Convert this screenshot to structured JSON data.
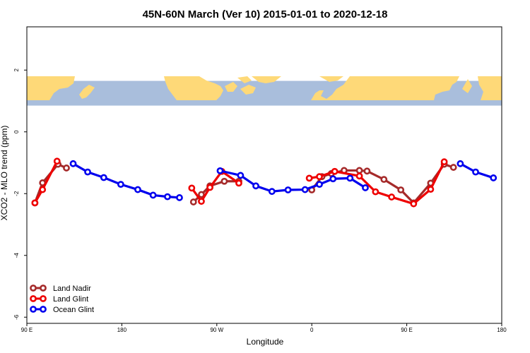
{
  "chart_data": {
    "type": "line",
    "title": "45N-60N March (Ver 10)   2015-01-01 to 2020-12-18",
    "xlabel": "Longitude",
    "ylabel": "XCO2 - MLO trend (ppm)",
    "xlim": [
      -90,
      270
    ],
    "ylim": [
      -6.2,
      3.4
    ],
    "x_ticks": [
      {
        "value": -90,
        "label": "90 E"
      },
      {
        "value": -18,
        "label": "180"
      },
      {
        "value": 54,
        "label": "90 W"
      },
      {
        "value": 126,
        "label": "0"
      },
      {
        "value": 198,
        "label": "90 E"
      },
      {
        "value": 270,
        "label": "180"
      }
    ],
    "y_ticks": [
      {
        "value": 2,
        "label": "2"
      },
      {
        "value": 0,
        "label": "0"
      },
      {
        "value": -2,
        "label": "-2"
      },
      {
        "value": -4,
        "label": "-4"
      },
      {
        "value": -6,
        "label": "-6"
      }
    ],
    "map_band": {
      "y_top": 1.65,
      "y_bottom": 0.85,
      "ocean_color": "#A9BEDC",
      "land_color": "#FED978"
    },
    "legend": {
      "position": "bottom-left"
    },
    "series": [
      {
        "name": "Land Nadir",
        "color": "#A52A2A",
        "segments": [
          {
            "x": [
              -83.9,
              -78.1,
              -66.4,
              -60.0
            ],
            "y": [
              -2.3,
              -1.65,
              -1.05,
              -1.17
            ]
          },
          {
            "x": [
              36.3,
              42.3,
              48.8,
              59.7,
              70.7
            ],
            "y": [
              -2.27,
              -2.03,
              -1.75,
              -1.6,
              -1.6
            ]
          },
          {
            "x": [
              126.0,
              133.7,
              140.8,
              150.5,
              162.1,
              167.9,
              180.7,
              193.5,
              203.2,
              216.1,
              226.4,
              233.4
            ],
            "y": [
              -1.88,
              -1.45,
              -1.35,
              -1.25,
              -1.25,
              -1.27,
              -1.54,
              -1.88,
              -2.3,
              -1.66,
              -1.05,
              -1.15
            ]
          }
        ]
      },
      {
        "name": "Land Glint",
        "color": "#EE0000",
        "segments": [
          {
            "x": [
              -83.9,
              -78.1,
              -67.1
            ],
            "y": [
              -2.3,
              -1.87,
              -0.95
            ]
          },
          {
            "x": [
              35.0,
              42.3,
              48.8,
              57.8,
              70.7
            ],
            "y": [
              -1.82,
              -2.25,
              -1.8,
              -1.28,
              -1.66
            ]
          },
          {
            "x": [
              124.1,
              131.8,
              143.4,
              162.1,
              174.3,
              186.5,
              203.2,
              216.1,
              226.4
            ],
            "y": [
              -1.5,
              -1.45,
              -1.28,
              -1.43,
              -1.94,
              -2.11,
              -2.33,
              -1.86,
              -0.97
            ]
          }
        ]
      },
      {
        "name": "Ocean Glint",
        "color": "#0000EE",
        "segments": [
          {
            "x": [
              -54.9,
              -43.9,
              -31.7,
              -18.8,
              -5.9,
              5.7,
              16.6,
              25.7
            ],
            "y": [
              -1.03,
              -1.3,
              -1.48,
              -1.7,
              -1.87,
              -2.05,
              -2.1,
              -2.13
            ]
          },
          {
            "x": [
              56.5,
              72.0,
              83.6,
              95.8,
              108.0,
              120.9,
              131.8,
              142.1,
              155.0,
              166.6
            ],
            "y": [
              -1.26,
              -1.41,
              -1.75,
              -1.93,
              -1.88,
              -1.87,
              -1.7,
              -1.52,
              -1.5,
              -1.81
            ]
          },
          {
            "x": [
              238.6,
              250.2,
              263.7
            ],
            "y": [
              -1.03,
              -1.3,
              -1.49
            ]
          }
        ]
      }
    ]
  }
}
